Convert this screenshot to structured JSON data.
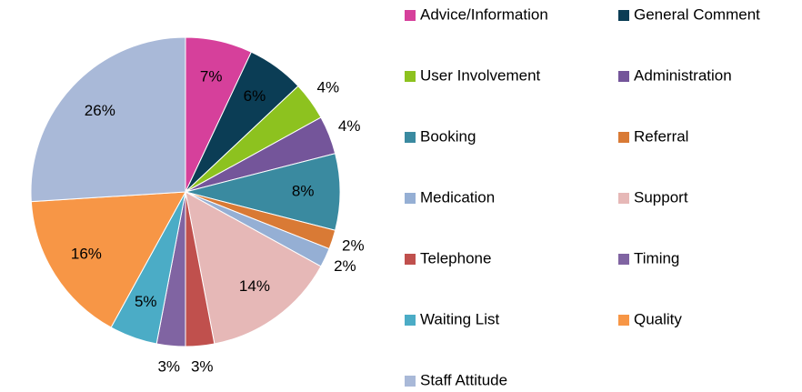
{
  "chart_data": {
    "type": "pie",
    "categories": [
      "Advice/Information",
      "General Comment",
      "User Involvement",
      "Administration",
      "Booking",
      "Referral",
      "Medication",
      "Support",
      "Telephone",
      "Timing",
      "Waiting List",
      "Quality",
      "Staff Attitude"
    ],
    "values": [
      7,
      6,
      4,
      4,
      8,
      2,
      2,
      14,
      3,
      3,
      5,
      16,
      26
    ],
    "value_labels": [
      "7%",
      "6%",
      "4%",
      "4%",
      "8%",
      "2%",
      "2%",
      "14%",
      "3%",
      "3%",
      "5%",
      "16%",
      "26%"
    ],
    "colors": [
      "#d6409b",
      "#0b3d55",
      "#8dc21f",
      "#74559a",
      "#3a8aa0",
      "#d97a35",
      "#95afd4",
      "#e6b8b7",
      "#c0504d",
      "#8064a2",
      "#4bacc6",
      "#f79646",
      "#a9b9d8"
    ],
    "legend": "right"
  }
}
